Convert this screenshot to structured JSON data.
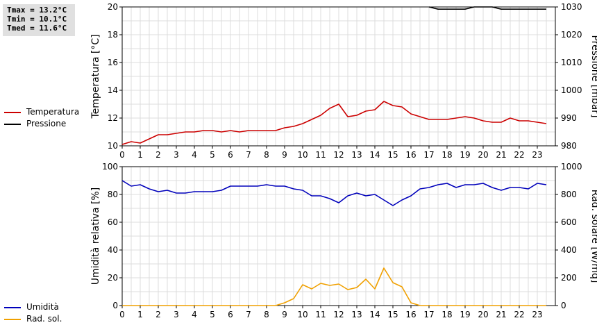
{
  "stats": {
    "tmax": "Tmax = 13.2°C",
    "tmin": "Tmin = 10.1°C",
    "tmed": "Tmed = 11.6°C"
  },
  "legend_top": [
    {
      "label": "Temperatura",
      "color": "#cc0000"
    },
    {
      "label": "Pressione",
      "color": "#000000"
    }
  ],
  "legend_bottom": [
    {
      "label": "Umidità",
      "color": "#0000bb"
    },
    {
      "label": "Rad. sol.",
      "color": "#f0a000"
    }
  ],
  "chart_data": [
    {
      "type": "line",
      "ylabel": "Temperatura [°C]",
      "ylabel_right": "Pressione [mbar]",
      "x_ticks": [
        "0",
        "1",
        "2",
        "3",
        "4",
        "5",
        "6",
        "7",
        "8",
        "9",
        "10",
        "11",
        "12",
        "13",
        "14",
        "15",
        "16",
        "17",
        "18",
        "19",
        "20",
        "21",
        "22",
        "23"
      ],
      "xlim": [
        0,
        24
      ],
      "ylim": [
        10,
        20
      ],
      "ylim_right": [
        980,
        1030
      ],
      "yticks": [
        "10",
        "12",
        "14",
        "16",
        "18",
        "20"
      ],
      "yticks_right": [
        "980",
        "990",
        "1000",
        "1010",
        "1020",
        "1030"
      ],
      "grid": true,
      "series": [
        {
          "name": "Temperatura",
          "axis": "left",
          "color": "#cc0000",
          "x": [
            0,
            0.5,
            1,
            1.5,
            2,
            2.5,
            3,
            3.5,
            4,
            4.5,
            5,
            5.5,
            6,
            6.5,
            7,
            7.5,
            8,
            8.5,
            9,
            9.5,
            10,
            10.5,
            11,
            11.5,
            12,
            12.5,
            13,
            13.5,
            14,
            14.5,
            15,
            15.5,
            16,
            16.5,
            17,
            17.5,
            18,
            18.5,
            19,
            19.5,
            20,
            20.5,
            21,
            21.5,
            22,
            22.5,
            23,
            23.5
          ],
          "values": [
            10.1,
            10.3,
            10.2,
            10.5,
            10.8,
            10.8,
            10.9,
            11.0,
            11.0,
            11.1,
            11.1,
            11.0,
            11.1,
            11.0,
            11.1,
            11.1,
            11.1,
            11.1,
            11.3,
            11.4,
            11.6,
            11.9,
            12.2,
            12.7,
            13.0,
            12.1,
            12.2,
            12.5,
            12.6,
            13.2,
            12.9,
            12.8,
            12.3,
            12.1,
            11.9,
            11.9,
            11.9,
            12.0,
            12.1,
            12.0,
            11.8,
            11.7,
            11.7,
            12.0,
            11.8,
            11.8,
            11.7,
            11.6
          ]
        },
        {
          "name": "Pressione",
          "axis": "right",
          "color": "#000000",
          "x": [
            17.0,
            17.5,
            18.0,
            18.5,
            19.0,
            19.5,
            20.0,
            20.5,
            21.0,
            21.5,
            22.0,
            22.5,
            23.0,
            23.5
          ],
          "values": [
            1030.0,
            1029.2,
            1029.2,
            1029.2,
            1029.2,
            1030.0,
            1030.0,
            1030.0,
            1029.2,
            1029.2,
            1029.2,
            1029.2,
            1029.2,
            1029.2
          ]
        }
      ]
    },
    {
      "type": "line",
      "ylabel": "Umidità relativa [%]",
      "ylabel_right": "Rad. solare [W/mq]",
      "x_ticks": [
        "0",
        "1",
        "2",
        "3",
        "4",
        "5",
        "6",
        "7",
        "8",
        "9",
        "10",
        "11",
        "12",
        "13",
        "14",
        "15",
        "16",
        "17",
        "18",
        "19",
        "20",
        "21",
        "22",
        "23"
      ],
      "xlim": [
        0,
        24
      ],
      "ylim": [
        0,
        100
      ],
      "ylim_right": [
        0,
        1000
      ],
      "yticks": [
        "0",
        "20",
        "40",
        "60",
        "80",
        "100"
      ],
      "yticks_right": [
        "0",
        "200",
        "400",
        "600",
        "800",
        "1000"
      ],
      "grid": true,
      "series": [
        {
          "name": "Umidità",
          "axis": "left",
          "color": "#0000bb",
          "x": [
            0,
            0.5,
            1,
            1.5,
            2,
            2.5,
            3,
            3.5,
            4,
            4.5,
            5,
            5.5,
            6,
            6.5,
            7,
            7.5,
            8,
            8.5,
            9,
            9.5,
            10,
            10.5,
            11,
            11.5,
            12,
            12.5,
            13,
            13.5,
            14,
            14.5,
            15,
            15.5,
            16,
            16.5,
            17,
            17.5,
            18,
            18.5,
            19,
            19.5,
            20,
            20.5,
            21,
            21.5,
            22,
            22.5,
            23,
            23.5
          ],
          "values": [
            90,
            86,
            87,
            84,
            82,
            83,
            81,
            81,
            82,
            82,
            82,
            83,
            86,
            86,
            86,
            86,
            87,
            86,
            86,
            84,
            83,
            79,
            79,
            77,
            74,
            79,
            81,
            79,
            80,
            76,
            72,
            76,
            79,
            84,
            85,
            87,
            88,
            85,
            87,
            87,
            88,
            85,
            83,
            85,
            85,
            84,
            88,
            87
          ]
        },
        {
          "name": "Rad. sol.",
          "axis": "right",
          "color": "#f0a000",
          "x": [
            0,
            0.5,
            1,
            1.5,
            2,
            2.5,
            3,
            3.5,
            4,
            4.5,
            5,
            5.5,
            6,
            6.5,
            7,
            7.5,
            8,
            8.5,
            9,
            9.5,
            10,
            10.5,
            11,
            11.5,
            12,
            12.5,
            13,
            13.5,
            14,
            14.5,
            15,
            15.5,
            16,
            16.5,
            17,
            17.5,
            18,
            18.5,
            19,
            19.5,
            20,
            20.5,
            21,
            21.5,
            22,
            22.5,
            23,
            23.5
          ],
          "values": [
            0,
            0,
            0,
            0,
            0,
            0,
            0,
            0,
            0,
            0,
            0,
            0,
            0,
            0,
            0,
            0,
            0,
            0,
            20,
            50,
            150,
            120,
            160,
            145,
            155,
            115,
            130,
            190,
            120,
            270,
            165,
            135,
            20,
            0,
            0,
            0,
            0,
            0,
            0,
            0,
            0,
            0,
            0,
            0,
            0,
            0,
            0,
            0
          ]
        }
      ]
    }
  ]
}
